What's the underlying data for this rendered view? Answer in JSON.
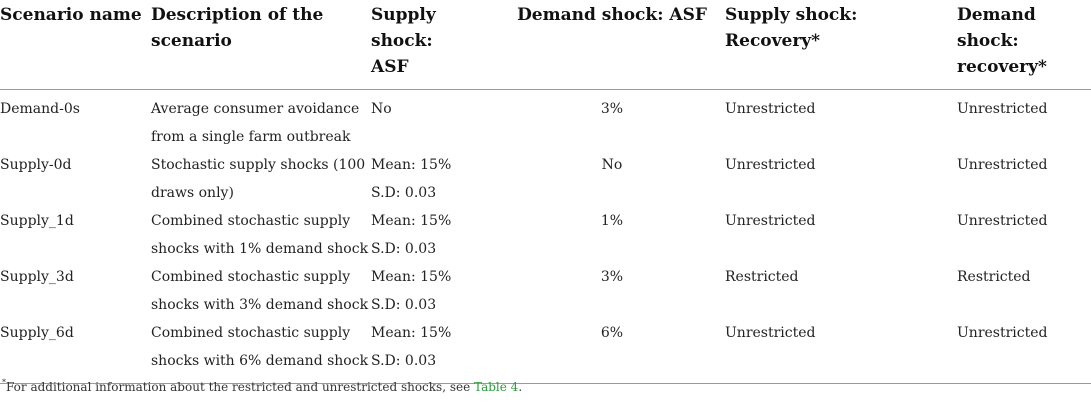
{
  "headers": {
    "scenario": "Scenario name",
    "description": [
      "Description of the",
      "scenario"
    ],
    "supply_asf": [
      "Supply shock:",
      "ASF"
    ],
    "demand_asf": "Demand shock: ASF",
    "supply_recovery": "Supply shock: Recovery*",
    "demand_recovery": [
      "Demand shock:",
      "recovery*"
    ]
  },
  "rows": [
    {
      "scenario": "Demand-0s",
      "description": [
        "Average consumer avoidance",
        "from a single farm outbreak"
      ],
      "supply_asf": [
        "No",
        ""
      ],
      "demand_asf": "3%",
      "supply_recovery": "Unrestricted",
      "demand_recovery": "Unrestricted"
    },
    {
      "scenario": "Supply-0d",
      "description": [
        "Stochastic supply shocks (100",
        "draws only)"
      ],
      "supply_asf": [
        "Mean: 15%",
        "S.D: 0.03"
      ],
      "demand_asf": "No",
      "supply_recovery": "Unrestricted",
      "demand_recovery": "Unrestricted"
    },
    {
      "scenario": "Supply_1d",
      "description": [
        "Combined stochastic supply",
        "shocks with 1% demand shock"
      ],
      "supply_asf": [
        "Mean: 15%",
        "S.D: 0.03"
      ],
      "demand_asf": "1%",
      "supply_recovery": "Unrestricted",
      "demand_recovery": "Unrestricted"
    },
    {
      "scenario": "Supply_3d",
      "description": [
        "Combined stochastic supply",
        "shocks with 3% demand shock"
      ],
      "supply_asf": [
        "Mean: 15%",
        "S.D: 0.03"
      ],
      "demand_asf": "3%",
      "supply_recovery": "Restricted",
      "demand_recovery": "Restricted"
    },
    {
      "scenario": "Supply_6d",
      "description": [
        "Combined stochastic supply",
        "shocks with 6% demand shock"
      ],
      "supply_asf": [
        "Mean: 15%",
        "S.D: 0.03"
      ],
      "demand_asf": "6%",
      "supply_recovery": "Unrestricted",
      "demand_recovery": "Unrestricted"
    }
  ],
  "footnote": {
    "marker": "*",
    "text": "For additional information about the restricted and unrestricted shocks, see ",
    "link": "Table 4",
    "end": ".",
    "link_color": "#2e9b3e"
  }
}
